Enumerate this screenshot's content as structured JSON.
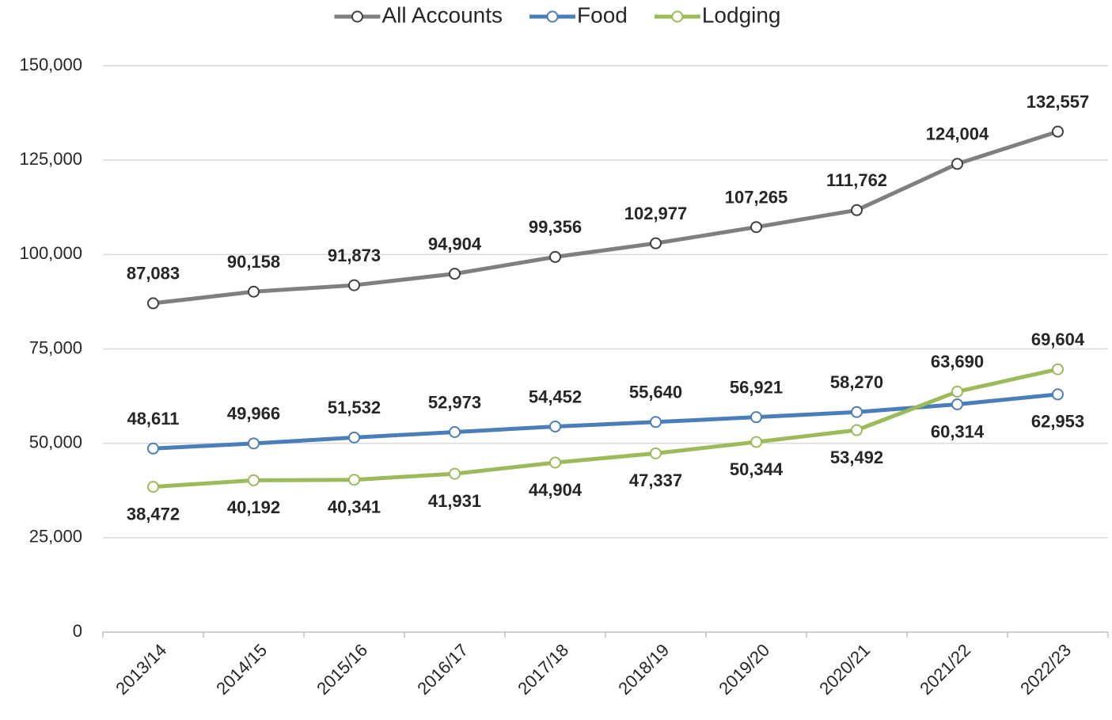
{
  "chart_data": {
    "type": "line",
    "categories": [
      "2013/14",
      "2014/15",
      "2015/16",
      "2016/17",
      "2017/18",
      "2018/19",
      "2019/20",
      "2020/21",
      "2021/22",
      "2022/23"
    ],
    "series": [
      {
        "name": "All Accounts",
        "color": "#7f7f7f",
        "values": [
          87083,
          90158,
          91873,
          94904,
          99356,
          102977,
          107265,
          111762,
          124004,
          132557
        ],
        "value_labels": [
          "87,083",
          "90,158",
          "91,873",
          "94,904",
          "99,356",
          "102,977",
          "107,265",
          "111,762",
          "124,004",
          "132,557"
        ]
      },
      {
        "name": "Food",
        "color": "#4a7ebb",
        "values": [
          48611,
          49966,
          51532,
          52973,
          54452,
          55640,
          56921,
          58270,
          60314,
          62953
        ],
        "value_labels": [
          "48,611",
          "49,966",
          "51,532",
          "52,973",
          "54,452",
          "55,640",
          "56,921",
          "58,270",
          "60,314",
          "62,953"
        ]
      },
      {
        "name": "Lodging",
        "color": "#9bbb59",
        "values": [
          38472,
          40192,
          40341,
          41931,
          44904,
          47337,
          50344,
          53492,
          63690,
          69604
        ],
        "value_labels": [
          "38,472",
          "40,192",
          "40,341",
          "41,931",
          "44,904",
          "47,337",
          "50,344",
          "53,492",
          "63,690",
          "69,604"
        ]
      }
    ],
    "ylim": [
      0,
      150000
    ],
    "yticks": [
      0,
      {
        "value": 25000,
        "label": "25,000"
      },
      {
        "value": 50000,
        "label": "50,000"
      },
      {
        "value": 75000,
        "label": "75,000"
      },
      {
        "value": 100000,
        "label": "100,000"
      },
      {
        "value": 125000,
        "label": "125,000"
      },
      {
        "value": 150000,
        "label": "150,000"
      }
    ],
    "grid": true,
    "legend": "top"
  }
}
